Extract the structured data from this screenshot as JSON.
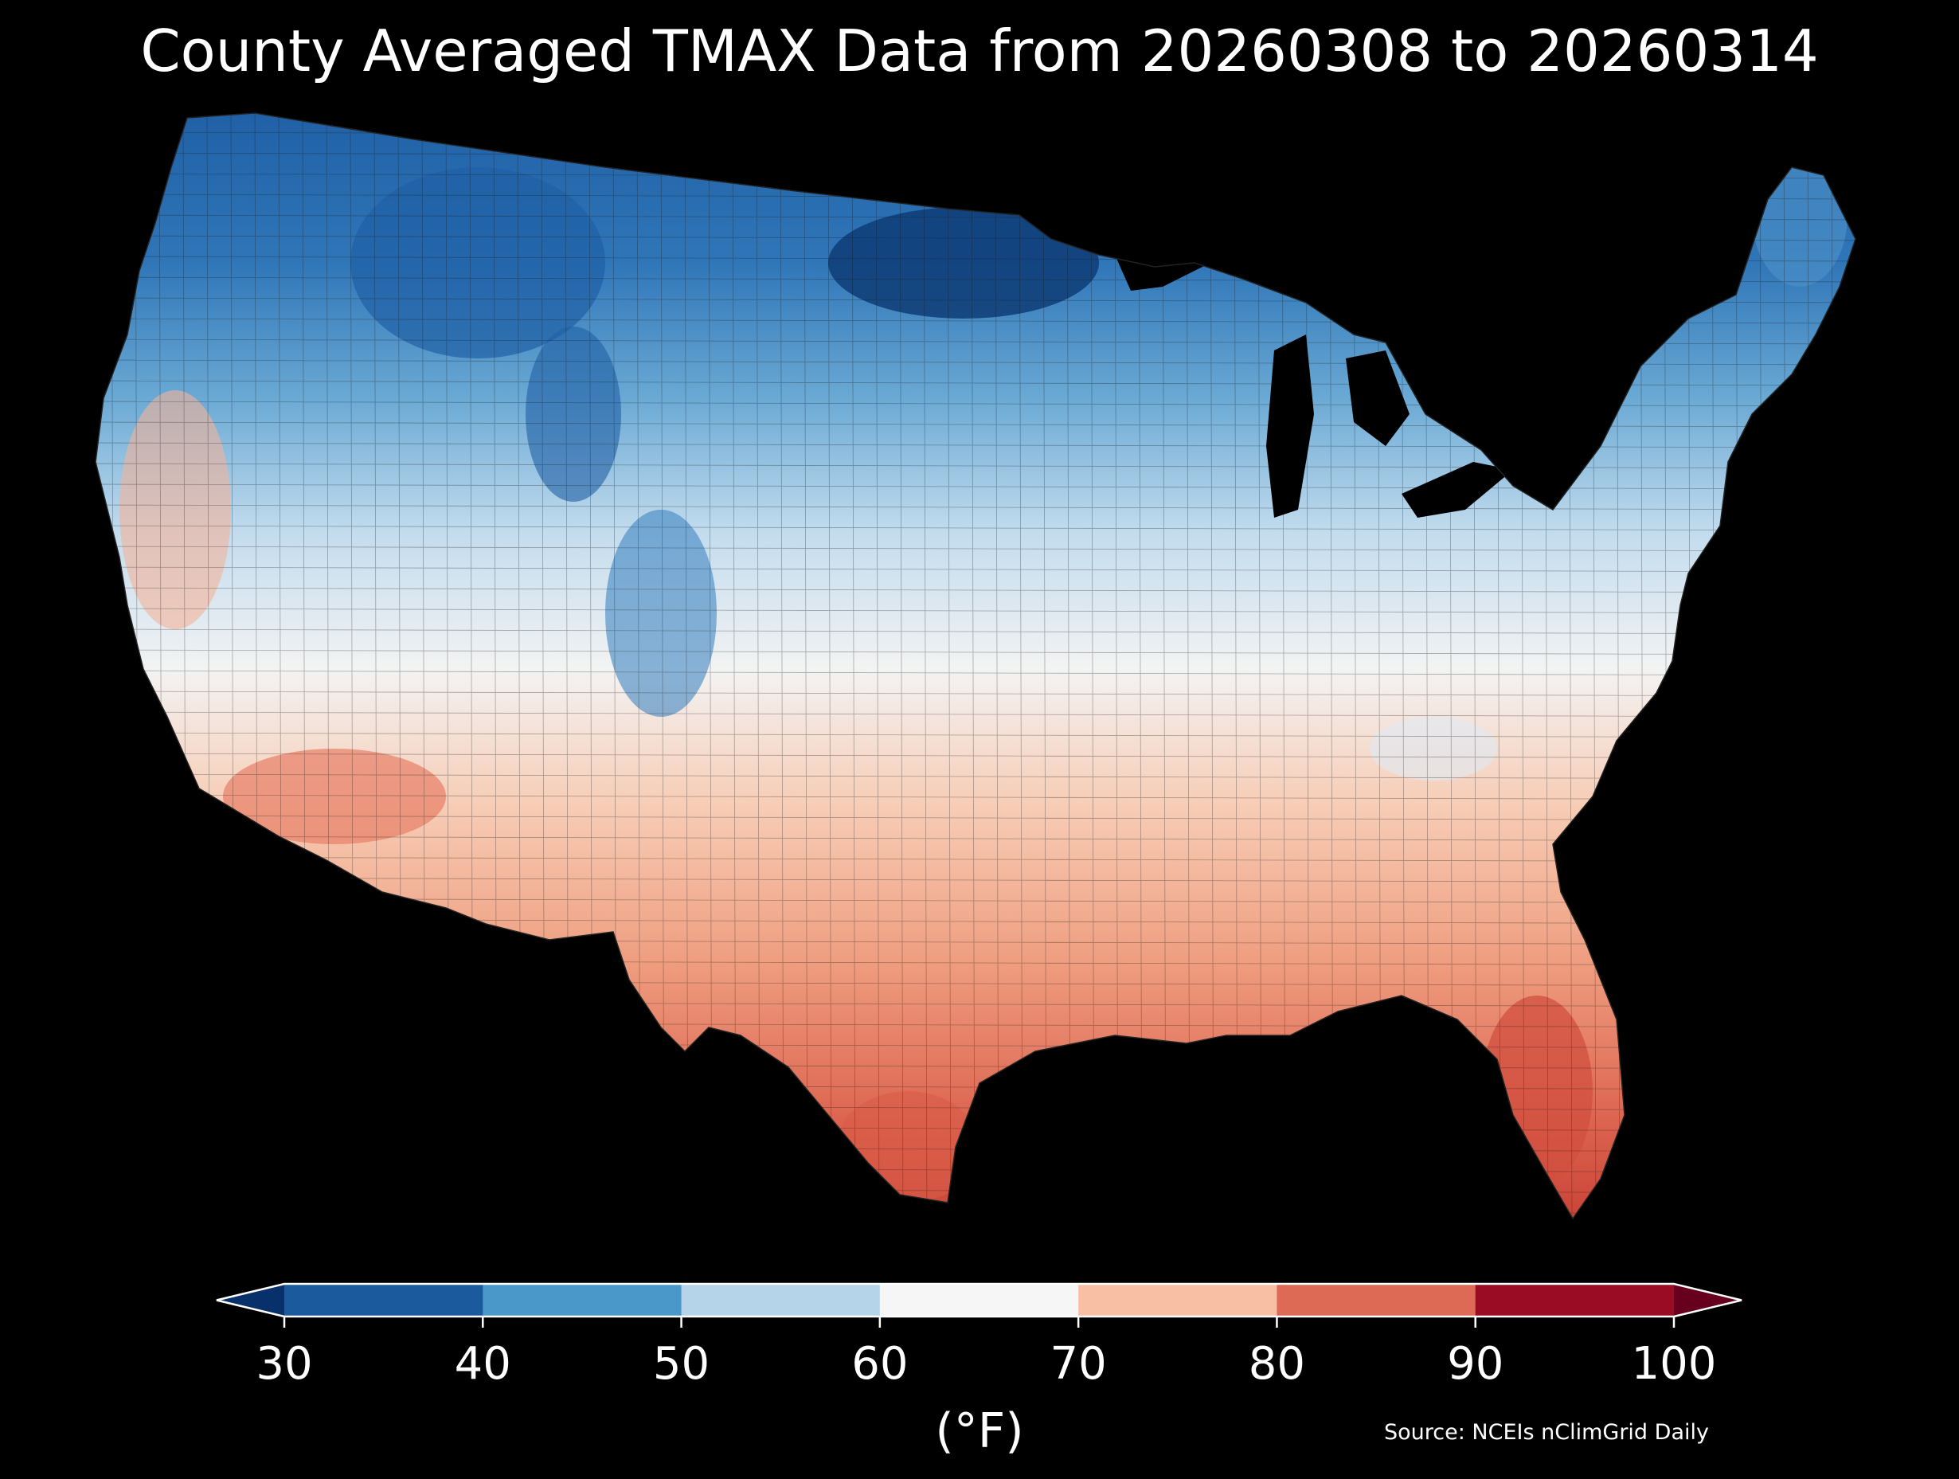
{
  "title": "County Averaged TMAX Data from 20260308 to 20260314",
  "colorbar": {
    "ticks": [
      "30",
      "40",
      "50",
      "60",
      "70",
      "80",
      "90",
      "100"
    ],
    "unit": "(°F)",
    "bins": [
      {
        "range": "<30",
        "color": "#08306b"
      },
      {
        "range": "30-40",
        "color": "#1c5a9e"
      },
      {
        "range": "40-50",
        "color": "#4a98c9"
      },
      {
        "range": "50-60",
        "color": "#b6d4e9"
      },
      {
        "range": "60-70",
        "color": "#f6f6f6"
      },
      {
        "range": "70-80",
        "color": "#f8bfa4"
      },
      {
        "range": "80-90",
        "color": "#dc6a54"
      },
      {
        "range": "90-100",
        "color": "#990c23"
      },
      {
        "range": ">100",
        "color": "#67001f"
      }
    ]
  },
  "source": "Source: NCEIs nClimGrid Daily",
  "map_colors": {
    "very_cold": "#0d3a73",
    "cold": "#2a6fb3",
    "cool": "#6aa9d4",
    "mild": "#c3dcee",
    "neutral": "#f3f3f3",
    "warm": "#f9c7ad",
    "hot": "#ec9274",
    "very_hot": "#d24f3f"
  }
}
